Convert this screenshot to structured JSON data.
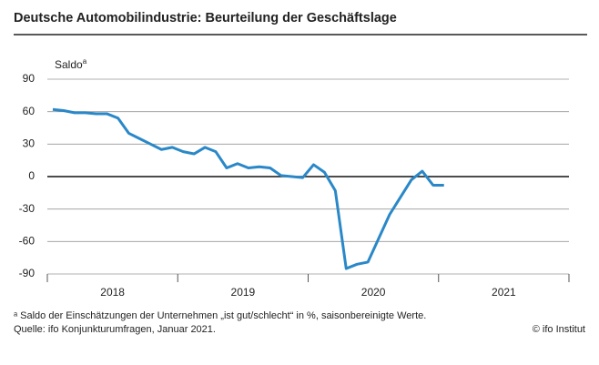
{
  "chart_data": {
    "type": "line",
    "title": "Deutsche Automobilindustrie: Beurteilung der Geschäftslage",
    "y_label": "Saldo",
    "y_label_mark": "a",
    "footnote": "ᵃ Saldo der Einschätzungen der Unternehmen „ist gut/schlecht“ in %, saisonbereinigte Werte.",
    "source": "Quelle: ifo Konjunkturumfragen, Januar 2021.",
    "credit": "© ifo Institut",
    "x_year_labels": [
      "2018",
      "2019",
      "2020",
      "2021"
    ],
    "categories": [
      null,
      null,
      null,
      null,
      null,
      null,
      null,
      null,
      null,
      null,
      null,
      null,
      null,
      null,
      null,
      null,
      null,
      null,
      null,
      null,
      null,
      null,
      null,
      null,
      null,
      null,
      null,
      null,
      null,
      null,
      null,
      null,
      null,
      null,
      null,
      null,
      null
    ],
    "series": [
      {
        "name": "Geschäftslage",
        "color": "#2a88c8",
        "values": [
          62,
          61,
          59,
          59,
          58,
          58,
          54,
          40,
          35,
          30,
          25,
          27,
          23,
          21,
          27,
          23,
          8,
          12,
          8,
          9,
          8,
          1,
          0,
          -1,
          11,
          4,
          -13,
          -85,
          -81,
          -79,
          -57,
          -35,
          -19,
          -3,
          5,
          -8,
          -8
        ]
      }
    ],
    "ylim": [
      -90,
      90
    ],
    "yticks": [
      90,
      60,
      30,
      0,
      -30,
      -60,
      -90
    ],
    "grid": true
  }
}
